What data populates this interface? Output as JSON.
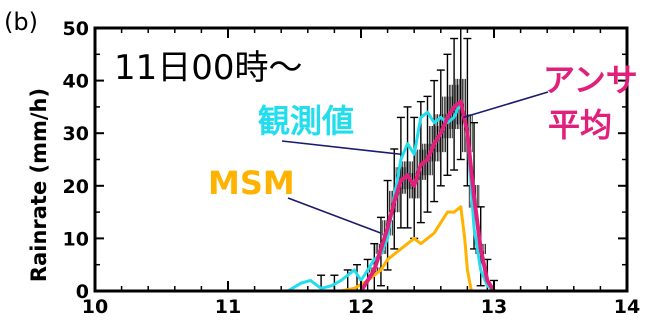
{
  "panel_label": "(b)",
  "chart_data": {
    "type": "line",
    "title": "11日00時〜",
    "xlabel": "",
    "ylabel": "Rainrate (mm/h)",
    "xlim": [
      10,
      14
    ],
    "ylim": [
      0,
      50
    ],
    "xticks": [
      "10",
      "11",
      "12",
      "13",
      "14"
    ],
    "yticks": [
      "0",
      "10",
      "20",
      "30",
      "40",
      "50"
    ],
    "grid": false,
    "legend": "inline-annotations",
    "colors": {
      "observed": "#22ddee",
      "msm": "#ffb300",
      "ensemble_mean": "#e0207a",
      "pointer": "#1a1a6e",
      "errorbar": "#000000"
    },
    "series": [
      {
        "name": "観測値",
        "x": [
          11.45,
          11.55,
          11.62,
          11.7,
          11.78,
          11.85,
          11.9,
          11.95,
          12.0,
          12.05,
          12.1,
          12.15,
          12.2,
          12.25,
          12.3,
          12.35,
          12.4,
          12.45,
          12.5,
          12.55,
          12.6,
          12.65,
          12.7,
          12.75,
          12.8,
          12.85,
          12.9,
          12.95,
          13.0
        ],
        "y": [
          0,
          1.5,
          2,
          0.5,
          1,
          2,
          3,
          4,
          2,
          4,
          6,
          7,
          10,
          18,
          25,
          28,
          26,
          33,
          34,
          32,
          33,
          32,
          33,
          36,
          30,
          12,
          4,
          1,
          0
        ]
      },
      {
        "name": "MSM",
        "x": [
          11.85,
          11.95,
          12.05,
          12.15,
          12.2,
          12.3,
          12.35,
          12.4,
          12.45,
          12.5,
          12.55,
          12.6,
          12.65,
          12.7,
          12.75,
          12.78,
          12.8,
          12.83
        ],
        "y": [
          0,
          0.5,
          2,
          4,
          6,
          8,
          9,
          10,
          9,
          10,
          11,
          13,
          15,
          15,
          16,
          10,
          4,
          0
        ]
      },
      {
        "name": "アンサ平均",
        "x": [
          12.0,
          12.05,
          12.1,
          12.15,
          12.2,
          12.25,
          12.3,
          12.35,
          12.4,
          12.45,
          12.5,
          12.55,
          12.6,
          12.65,
          12.7,
          12.75,
          12.8,
          12.85,
          12.9,
          12.95,
          13.0
        ],
        "y": [
          0,
          2,
          4,
          8,
          12,
          17,
          21,
          22,
          20,
          24,
          25,
          28,
          30,
          33,
          35,
          36,
          30,
          18,
          8,
          2,
          0
        ]
      }
    ],
    "errorbars": [
      {
        "x": 11.7,
        "low": 0,
        "high": 3
      },
      {
        "x": 11.8,
        "low": 0,
        "high": 3
      },
      {
        "x": 11.9,
        "low": 0,
        "high": 4
      },
      {
        "x": 11.97,
        "low": 0,
        "high": 5
      },
      {
        "x": 12.05,
        "low": 0,
        "high": 6
      },
      {
        "x": 12.1,
        "low": 0,
        "high": 9
      },
      {
        "x": 12.15,
        "low": 1,
        "high": 14
      },
      {
        "x": 12.2,
        "low": 4,
        "high": 21
      },
      {
        "x": 12.25,
        "low": 8,
        "high": 27
      },
      {
        "x": 12.3,
        "low": 12,
        "high": 33
      },
      {
        "x": 12.35,
        "low": 12,
        "high": 35
      },
      {
        "x": 12.4,
        "low": 10,
        "high": 33
      },
      {
        "x": 12.45,
        "low": 13,
        "high": 36
      },
      {
        "x": 12.5,
        "low": 15,
        "high": 37
      },
      {
        "x": 12.55,
        "low": 17,
        "high": 40
      },
      {
        "x": 12.6,
        "low": 20,
        "high": 42
      },
      {
        "x": 12.65,
        "low": 22,
        "high": 45
      },
      {
        "x": 12.7,
        "low": 23,
        "high": 48
      },
      {
        "x": 12.75,
        "low": 25,
        "high": 50
      },
      {
        "x": 12.8,
        "low": 20,
        "high": 48
      },
      {
        "x": 12.85,
        "low": 8,
        "high": 32
      },
      {
        "x": 12.9,
        "low": 1,
        "high": 16
      },
      {
        "x": 12.95,
        "low": 0,
        "high": 6
      },
      {
        "x": 13.0,
        "low": 0,
        "high": 2
      }
    ],
    "annotations": [
      {
        "text": "観測値",
        "series": "観測値"
      },
      {
        "text": "MSM",
        "series": "MSM"
      },
      {
        "text": "アンサ",
        "series": "アンサ平均"
      },
      {
        "text": "平均",
        "series": "アンサ平均"
      }
    ]
  }
}
